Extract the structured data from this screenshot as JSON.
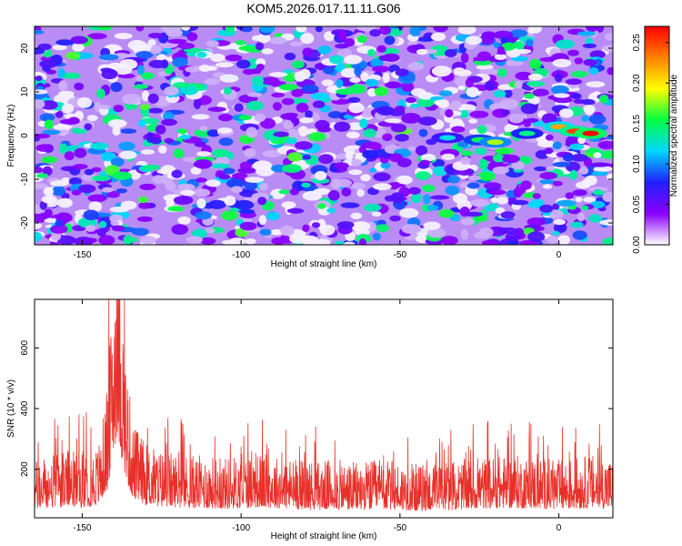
{
  "title": "KOM5.2026.017.11.11.G06",
  "chart_data": [
    {
      "type": "heatmap",
      "xlabel": "Height of straight line (km)",
      "ylabel": "Frequency (Hz)",
      "xlim": [
        -165,
        17
      ],
      "ylim": [
        -25,
        25
      ],
      "xticks": [
        -150,
        -100,
        -50,
        0
      ],
      "yticks": [
        -20,
        -10,
        0,
        10,
        20
      ],
      "colorbar": {
        "label": "Normalized spectral amplitude",
        "range": [
          0.0,
          0.27
        ],
        "ticks": [
          "0.00",
          "0.05",
          "0.10",
          "0.15",
          "0.20",
          "0.25"
        ],
        "colormap": [
          "#ffffff",
          "#8a00ff",
          "#2020ff",
          "#00d8ff",
          "#00ff40",
          "#ffff00",
          "#ff8000",
          "#ff0000"
        ]
      },
      "streak": {
        "description_points": [
          {
            "x": -35,
            "y": -0.5,
            "value": 0.12
          },
          {
            "x": -25,
            "y": -1.0,
            "value": 0.15
          },
          {
            "x": -20,
            "y": -1.5,
            "value": 0.18
          },
          {
            "x": -10,
            "y": 0.5,
            "value": 0.14
          },
          {
            "x": 0,
            "y": 2.0,
            "value": 0.22
          },
          {
            "x": 5,
            "y": 1.0,
            "value": 0.25
          },
          {
            "x": 10,
            "y": 0.5,
            "value": 0.27
          }
        ]
      }
    },
    {
      "type": "line",
      "xlabel": "Height of straight line (km)",
      "ylabel": "SNR (10 * v/v)",
      "xlim": [
        -165,
        17
      ],
      "ylim": [
        40,
        760
      ],
      "xticks": [
        -150,
        -100,
        -50,
        0
      ],
      "yticks": [
        200,
        400,
        600
      ],
      "color": "#e8302a",
      "series": [
        {
          "x": [
            -165,
            -160,
            -155,
            -150,
            -145,
            -142,
            -140,
            -139,
            -138,
            -136,
            -134,
            -130,
            -125,
            -120,
            -115,
            -110,
            -105,
            -100,
            -95,
            -90,
            -85,
            -80,
            -75,
            -70,
            -65,
            -60,
            -55,
            -50,
            -45,
            -40,
            -35,
            -30,
            -25,
            -20,
            -15,
            -10,
            -5,
            0,
            5,
            10,
            15,
            17
          ],
          "values": [
            150,
            160,
            170,
            165,
            180,
            300,
            580,
            700,
            560,
            350,
            230,
            185,
            170,
            165,
            160,
            158,
            155,
            160,
            165,
            160,
            155,
            150,
            148,
            150,
            145,
            148,
            150,
            145,
            140,
            142,
            145,
            150,
            155,
            158,
            160,
            158,
            155,
            150,
            155,
            160,
            158,
            150
          ]
        }
      ]
    }
  ]
}
